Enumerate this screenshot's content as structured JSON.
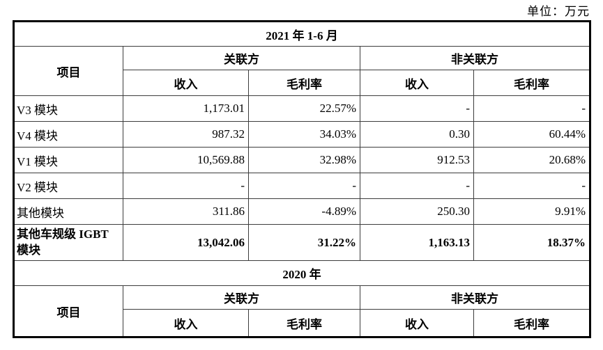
{
  "unit_label": "单位：万元",
  "section_2021": {
    "title": "2021 年 1-6 月",
    "item_col": "项目",
    "related": "关联方",
    "non_related": "非关联方",
    "revenue": "收入",
    "margin": "毛利率",
    "revenue2": "收入",
    "margin2": "毛利率",
    "rows": [
      {
        "label": "V3 模块",
        "rel_revenue": "1,173.01",
        "rel_margin": "22.57%",
        "non_revenue": "-",
        "non_margin": "-"
      },
      {
        "label": "V4 模块",
        "rel_revenue": "987.32",
        "rel_margin": "34.03%",
        "non_revenue": "0.30",
        "non_margin": "60.44%"
      },
      {
        "label": "V1 模块",
        "rel_revenue": "10,569.88",
        "rel_margin": "32.98%",
        "non_revenue": "912.53",
        "non_margin": "20.68%"
      },
      {
        "label": "V2 模块",
        "rel_revenue": "-",
        "rel_margin": "-",
        "non_revenue": "-",
        "non_margin": "-"
      },
      {
        "label": "其他模块",
        "rel_revenue": "311.86",
        "rel_margin": "-4.89%",
        "non_revenue": "250.30",
        "non_margin": "9.91%"
      },
      {
        "label": "其他车规级 IGBT 模块",
        "rel_revenue": "13,042.06",
        "rel_margin": "31.22%",
        "non_revenue": "1,163.13",
        "non_margin": "18.37%"
      }
    ]
  },
  "section_2020": {
    "title": "2020 年",
    "item_col": "项目",
    "related": "关联方",
    "non_related": "非关联方",
    "revenue": "收入",
    "margin": "毛利率",
    "revenue2": "收入",
    "margin2": "毛利率"
  }
}
